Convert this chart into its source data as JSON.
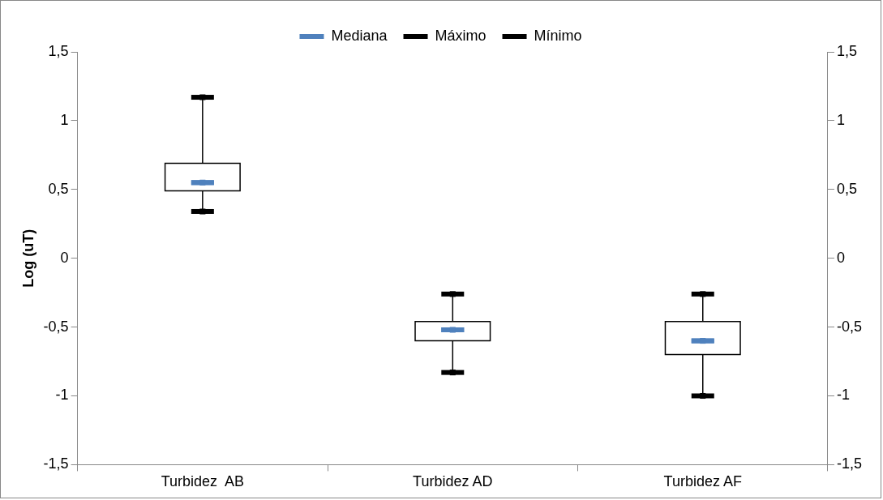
{
  "chart_data": {
    "type": "box",
    "ylabel": "Log (uT)",
    "categories": [
      "Turbidez  AB",
      "Turbidez AD",
      "Turbidez AF"
    ],
    "boxes": [
      {
        "low": 0.34,
        "q1": 0.49,
        "median": 0.55,
        "q3": 0.69,
        "high": 1.17
      },
      {
        "low": -0.83,
        "q1": -0.6,
        "median": -0.52,
        "q3": -0.46,
        "high": -0.26
      },
      {
        "low": -1.0,
        "q1": -0.7,
        "median": -0.6,
        "q3": -0.46,
        "high": -0.26
      }
    ],
    "series": [
      {
        "name": "Mediana",
        "type": "scatter",
        "color": "#4f81bd",
        "x": [
          "Turbidez  AB",
          "Turbidez AD",
          "Turbidez AF"
        ],
        "values": [
          0.55,
          -0.52,
          -0.6
        ]
      },
      {
        "name": "Máximo",
        "type": "scatter",
        "color": "#000000",
        "x": [
          "Turbidez  AB",
          "Turbidez AD",
          "Turbidez AF"
        ],
        "values": [
          1.17,
          -0.26,
          -0.26
        ]
      },
      {
        "name": "Mínimo",
        "type": "scatter",
        "color": "#000000",
        "x": [
          "Turbidez  AB",
          "Turbidez AD",
          "Turbidez AF"
        ],
        "values": [
          0.34,
          -0.83,
          -1.0
        ]
      }
    ],
    "ylim": [
      -1.5,
      1.5
    ],
    "yticks": [
      {
        "value": -1.5,
        "label": "-1,5"
      },
      -1,
      {
        "value": -0.5,
        "label": "-0,5"
      },
      0,
      {
        "value": 0.5,
        "label": "0,5"
      },
      1,
      {
        "value": 1.5,
        "label": "1,5"
      }
    ],
    "y2lim": [
      -1.5,
      1.5
    ],
    "y2ticks": [
      {
        "value": -1.5,
        "label": "-1,5"
      },
      -1,
      {
        "value": -0.5,
        "label": "-0,5"
      },
      0,
      {
        "value": 0.5,
        "label": "0,5"
      },
      1,
      {
        "value": 1.5,
        "label": "1,5"
      }
    ],
    "grid": false,
    "legend": "top"
  }
}
